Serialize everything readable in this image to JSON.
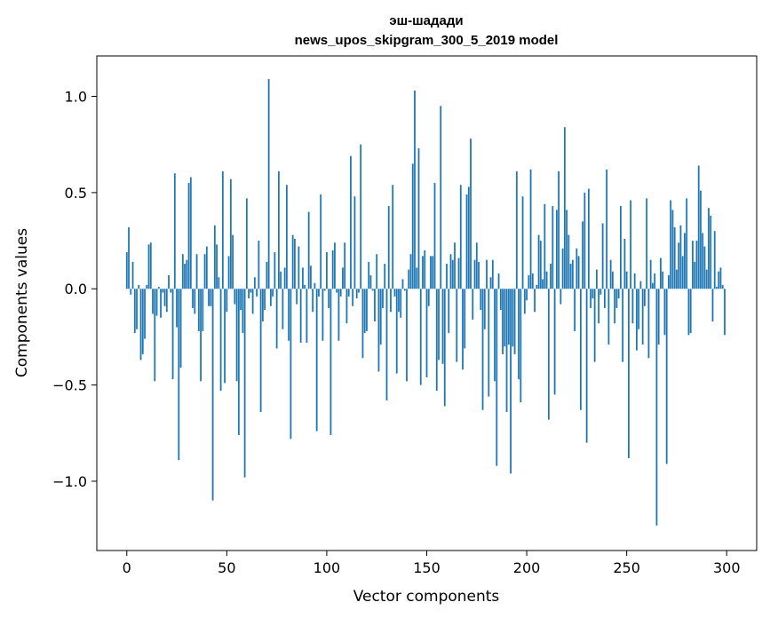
{
  "chart_data": {
    "type": "bar",
    "title": "эш-шадади",
    "subtitle": "news_upos_skipgram_300_5_2019 model",
    "xlabel": "Vector components",
    "ylabel": "Components values",
    "xlim": [
      -15,
      315
    ],
    "ylim": [
      -1.36,
      1.21
    ],
    "xticks": [
      0,
      50,
      100,
      150,
      200,
      250,
      300
    ],
    "yticks": [
      -1.0,
      -0.5,
      0.0,
      0.5,
      1.0
    ],
    "ytick_labels": [
      "−1.0",
      "−0.5",
      "0.0",
      "0.5",
      "1.0"
    ],
    "grid": false,
    "legend": "none",
    "color": "#1f77b4",
    "values": [
      0.19,
      0.32,
      -0.03,
      0.14,
      -0.23,
      -0.21,
      0.02,
      -0.37,
      -0.34,
      -0.26,
      0.02,
      0.23,
      0.24,
      -0.13,
      -0.48,
      -0.14,
      0.01,
      -0.15,
      -0.02,
      -0.09,
      -0.12,
      0.07,
      -0.02,
      -0.47,
      0.6,
      -0.2,
      -0.89,
      -0.41,
      0.18,
      0.13,
      0.15,
      0.55,
      0.58,
      -0.1,
      -0.13,
      0.18,
      -0.22,
      -0.48,
      -0.22,
      0.18,
      0.22,
      -0.09,
      -0.09,
      -1.1,
      0.33,
      0.23,
      0.06,
      -0.53,
      0.61,
      -0.49,
      -0.12,
      0.17,
      0.57,
      0.28,
      -0.08,
      -0.48,
      -0.76,
      -0.11,
      -0.23,
      -0.98,
      0.47,
      -0.05,
      -0.02,
      -0.13,
      0.06,
      -0.04,
      0.25,
      -0.64,
      -0.17,
      -0.11,
      0.14,
      1.09,
      -0.09,
      -0.04,
      0.19,
      -0.31,
      0.61,
      0.09,
      -0.21,
      0.11,
      0.54,
      -0.27,
      -0.78,
      0.28,
      0.26,
      -0.08,
      0.22,
      -0.28,
      0.11,
      0.02,
      -0.28,
      0.4,
      0.12,
      -0.12,
      0.03,
      -0.74,
      -0.04,
      0.49,
      -0.27,
      -0.01,
      0.19,
      -0.1,
      -0.76,
      0.2,
      0.24,
      -0.02,
      -0.27,
      -0.04,
      0.11,
      0.24,
      -0.18,
      -0.04,
      0.69,
      -0.09,
      0.48,
      -0.05,
      -0.02,
      0.75,
      -0.36,
      -0.23,
      -0.22,
      0.14,
      0.07,
      -0.01,
      -0.17,
      0.18,
      -0.43,
      -0.29,
      -0.1,
      0.13,
      -0.58,
      0.43,
      -0.12,
      0.54,
      -0.04,
      -0.44,
      -0.12,
      -0.15,
      0.05,
      -0.01,
      -0.48,
      0.1,
      0.18,
      0.65,
      1.03,
      0.11,
      0.73,
      -0.5,
      0.17,
      0.2,
      -0.46,
      -0.09,
      0.17,
      0.17,
      0.55,
      -0.53,
      -0.37,
      0.95,
      -0.39,
      -0.61,
      0.13,
      -0.23,
      0.18,
      0.15,
      0.24,
      -0.38,
      0.16,
      0.54,
      -0.42,
      -0.31,
      0.49,
      0.53,
      0.78,
      -0.16,
      0.15,
      0.24,
      0.14,
      -0.11,
      -0.63,
      -0.21,
      0.15,
      -0.56,
      0.06,
      0.15,
      -0.48,
      -0.92,
      0.08,
      -0.11,
      -0.34,
      -0.3,
      -0.64,
      -0.29,
      -0.96,
      -0.3,
      -0.34,
      0.61,
      -0.47,
      -0.59,
      0.48,
      -0.13,
      -0.06,
      0.07,
      0.62,
      0.08,
      -0.12,
      0.02,
      0.28,
      0.25,
      0.05,
      0.44,
      0.09,
      -0.68,
      0.13,
      0.43,
      -0.55,
      0.41,
      0.61,
      -0.08,
      0.21,
      0.84,
      0.41,
      0.28,
      0.13,
      0.15,
      -0.22,
      0.21,
      0.17,
      -0.63,
      0.35,
      0.5,
      -0.8,
      0.52,
      -0.1,
      -0.05,
      -0.38,
      0.1,
      -0.18,
      -0.03,
      0.34,
      -0.1,
      0.62,
      -0.29,
      0.15,
      0.09,
      -0.18,
      -0.1,
      -0.05,
      0.43,
      -0.38,
      0.26,
      0.09,
      -0.88,
      0.46,
      -0.18,
      0.08,
      -0.32,
      -0.21,
      0.04,
      -0.29,
      -0.09,
      0.47,
      -0.36,
      0.15,
      0.03,
      0.08,
      -1.23,
      -0.29,
      0.16,
      0.09,
      -0.24,
      -0.91,
      0.07,
      0.46,
      0.41,
      0.32,
      0.1,
      0.24,
      0.33,
      0.17,
      0.29,
      0.47,
      -0.24,
      -0.23,
      0.25,
      0.14,
      0.25,
      0.64,
      0.51,
      0.29,
      0.22,
      0.1,
      0.42,
      0.38,
      -0.17,
      0.3,
      0.01,
      0.09,
      0.11,
      0.02,
      -0.24
    ]
  }
}
